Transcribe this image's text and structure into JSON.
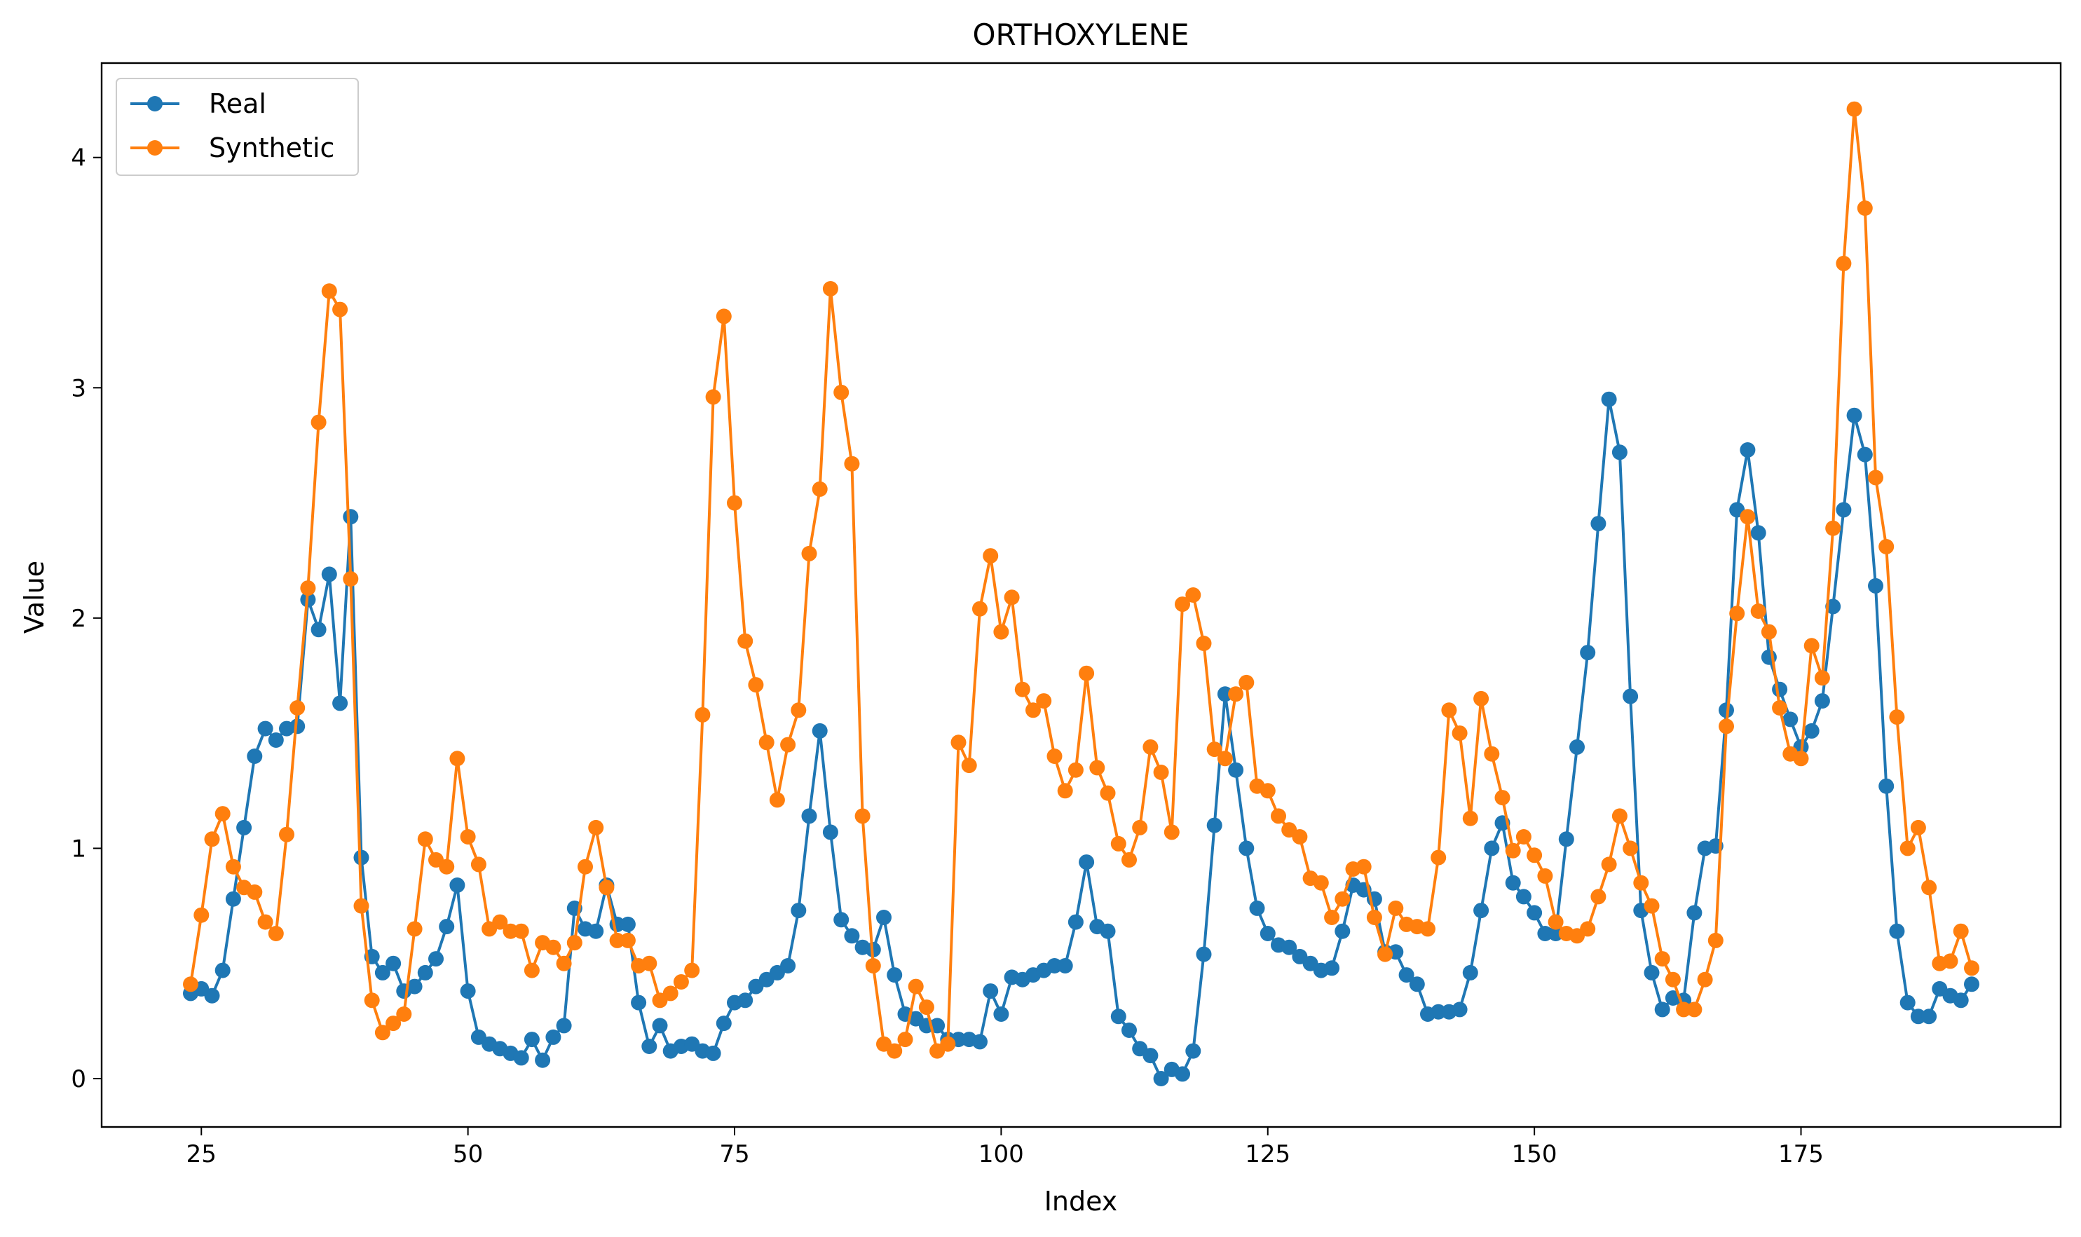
{
  "chart_data": {
    "type": "line",
    "title": "ORTHOXYLENE",
    "xlabel": "Index",
    "ylabel": "Value",
    "xlim": [
      15.65,
      199.35
    ],
    "ylim": [
      -0.21,
      4.41
    ],
    "xticks": [
      25,
      50,
      75,
      100,
      125,
      150,
      175
    ],
    "yticks": [
      0,
      1,
      2,
      3,
      4
    ],
    "grid": false,
    "legend_position": "top-left",
    "x": [
      24,
      25,
      26,
      27,
      28,
      29,
      30,
      31,
      32,
      33,
      34,
      35,
      36,
      37,
      38,
      39,
      40,
      41,
      42,
      43,
      44,
      45,
      46,
      47,
      48,
      49,
      50,
      51,
      52,
      53,
      54,
      55,
      56,
      57,
      58,
      59,
      60,
      61,
      62,
      63,
      64,
      65,
      66,
      67,
      68,
      69,
      70,
      71,
      72,
      73,
      74,
      75,
      76,
      77,
      78,
      79,
      80,
      81,
      82,
      83,
      84,
      85,
      86,
      87,
      88,
      89,
      90,
      91,
      92,
      93,
      94,
      95,
      96,
      97,
      98,
      99,
      100,
      101,
      102,
      103,
      104,
      105,
      106,
      107,
      108,
      109,
      110,
      111,
      112,
      113,
      114,
      115,
      116,
      117,
      118,
      119,
      120,
      121,
      122,
      123,
      124,
      125,
      126,
      127,
      128,
      129,
      130,
      131,
      132,
      133,
      134,
      135,
      136,
      137,
      138,
      139,
      140,
      141,
      142,
      143,
      144,
      145,
      146,
      147,
      148,
      149,
      150,
      151,
      152,
      153,
      154,
      155,
      156,
      157,
      158,
      159,
      160,
      161,
      162,
      163,
      164,
      165,
      166,
      167,
      168,
      169,
      170,
      171,
      172,
      173,
      174,
      175,
      176,
      177,
      178,
      179,
      180,
      181,
      182,
      183,
      184,
      185,
      186,
      187,
      188,
      189,
      190,
      191
    ],
    "series": [
      {
        "name": "Real",
        "color": "#1f77b4",
        "values": [
          0.37,
          0.39,
          0.36,
          0.47,
          0.78,
          1.09,
          1.4,
          1.52,
          1.47,
          1.52,
          1.53,
          2.08,
          1.95,
          2.19,
          1.63,
          2.44,
          0.96,
          0.53,
          0.46,
          0.5,
          0.38,
          0.4,
          0.46,
          0.52,
          0.66,
          0.84,
          0.38,
          0.18,
          0.15,
          0.13,
          0.11,
          0.09,
          0.17,
          0.08,
          0.18,
          0.23,
          0.74,
          0.65,
          0.64,
          0.84,
          0.67,
          0.67,
          0.33,
          0.14,
          0.23,
          0.12,
          0.14,
          0.15,
          0.12,
          0.11,
          0.24,
          0.33,
          0.34,
          0.4,
          0.43,
          0.46,
          0.49,
          0.73,
          1.14,
          1.51,
          1.07,
          0.69,
          0.62,
          0.57,
          0.56,
          0.7,
          0.45,
          0.28,
          0.26,
          0.23,
          0.23,
          0.17,
          0.17,
          0.17,
          0.16,
          0.38,
          0.28,
          0.44,
          0.43,
          0.45,
          0.47,
          0.49,
          0.49,
          0.68,
          0.94,
          0.66,
          0.64,
          0.27,
          0.21,
          0.13,
          0.1,
          0.0,
          0.04,
          0.02,
          0.12,
          0.54,
          1.1,
          1.67,
          1.34,
          1.0,
          0.74,
          0.63,
          0.58,
          0.57,
          0.53,
          0.5,
          0.47,
          0.48,
          0.64,
          0.84,
          0.82,
          0.78,
          0.55,
          0.55,
          0.45,
          0.41,
          0.28,
          0.29,
          0.29,
          0.3,
          0.46,
          0.73,
          1.0,
          1.11,
          0.85,
          0.79,
          0.72,
          0.63,
          0.63,
          1.04,
          1.44,
          1.85,
          2.41,
          2.95,
          2.72,
          1.66,
          0.73,
          0.46,
          0.3,
          0.35,
          0.34,
          0.72,
          1.0,
          1.01,
          1.6,
          2.47,
          2.73,
          2.37,
          1.83,
          1.69,
          1.56,
          1.44,
          1.51,
          1.64,
          2.05,
          2.47,
          2.88,
          2.71,
          2.14,
          1.27,
          0.64,
          0.33,
          0.27,
          0.27,
          0.39,
          0.36,
          0.34,
          0.41
        ]
      },
      {
        "name": "Synthetic",
        "color": "#ff7f0e",
        "values": [
          0.41,
          0.71,
          1.04,
          1.15,
          0.92,
          0.83,
          0.81,
          0.68,
          0.63,
          1.06,
          1.61,
          2.13,
          2.85,
          3.42,
          3.34,
          2.17,
          0.75,
          0.34,
          0.2,
          0.24,
          0.28,
          0.65,
          1.04,
          0.95,
          0.92,
          1.39,
          1.05,
          0.93,
          0.65,
          0.68,
          0.64,
          0.64,
          0.47,
          0.59,
          0.57,
          0.5,
          0.59,
          0.92,
          1.09,
          0.83,
          0.6,
          0.6,
          0.49,
          0.5,
          0.34,
          0.37,
          0.42,
          0.47,
          1.58,
          2.96,
          3.31,
          2.5,
          1.9,
          1.71,
          1.46,
          1.21,
          1.45,
          1.6,
          2.28,
          2.56,
          3.43,
          2.98,
          2.67,
          1.14,
          0.49,
          0.15,
          0.12,
          0.17,
          0.4,
          0.31,
          0.12,
          0.15,
          1.46,
          1.36,
          2.04,
          2.27,
          1.94,
          2.09,
          1.69,
          1.6,
          1.64,
          1.4,
          1.25,
          1.34,
          1.76,
          1.35,
          1.24,
          1.02,
          0.95,
          1.09,
          1.44,
          1.33,
          1.07,
          2.06,
          2.1,
          1.89,
          1.43,
          1.39,
          1.67,
          1.72,
          1.27,
          1.25,
          1.14,
          1.08,
          1.05,
          0.87,
          0.85,
          0.7,
          0.78,
          0.91,
          0.92,
          0.7,
          0.54,
          0.74,
          0.67,
          0.66,
          0.65,
          0.96,
          1.6,
          1.5,
          1.13,
          1.65,
          1.41,
          1.22,
          0.99,
          1.05,
          0.97,
          0.88,
          0.68,
          0.63,
          0.62,
          0.65,
          0.79,
          0.93,
          1.14,
          1.0,
          0.85,
          0.75,
          0.52,
          0.43,
          0.3,
          0.3,
          0.43,
          0.6,
          1.53,
          2.02,
          2.44,
          2.03,
          1.94,
          1.61,
          1.41,
          1.39,
          1.88,
          1.74,
          2.39,
          3.54,
          4.21,
          3.78,
          2.61,
          2.31,
          1.57,
          1.0,
          1.09,
          0.83,
          0.5,
          0.51,
          0.64,
          0.48
        ]
      }
    ]
  }
}
